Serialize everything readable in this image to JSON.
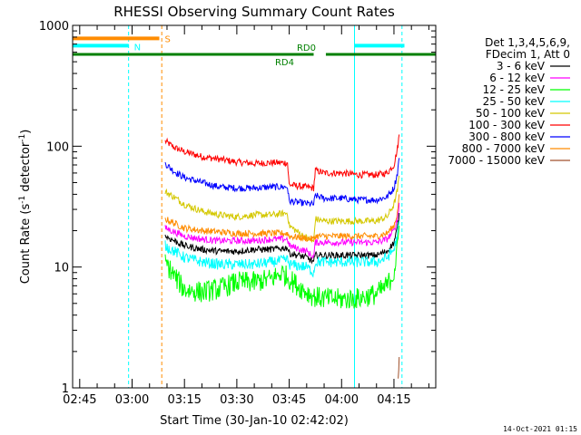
{
  "chart_data": {
    "type": "line",
    "title": "RHESSI Observing Summary Count Rates",
    "xlabel": "Start Time (30-Jan-10 02:42:02)",
    "ylabel_main": "Count Rate (s",
    "ylabel_sup1": "-1",
    "ylabel_mid": " detector",
    "ylabel_sup2": "-1",
    "ylabel_end": ")",
    "y_scale": "log",
    "ylim": [
      1,
      1000
    ],
    "xlim_minutes": [
      -2.03,
      101.97
    ],
    "x_ticks": [
      {
        "label": "02:45",
        "minutes": 0
      },
      {
        "label": "03:00",
        "minutes": 15
      },
      {
        "label": "03:15",
        "minutes": 30
      },
      {
        "label": "03:30",
        "minutes": 45
      },
      {
        "label": "03:45",
        "minutes": 60
      },
      {
        "label": "04:00",
        "minutes": 75
      },
      {
        "label": "04:15",
        "minutes": 90
      }
    ],
    "y_ticks": [
      {
        "label": "1",
        "value": 1
      },
      {
        "label": "10",
        "value": 10
      },
      {
        "label": "100",
        "value": 100
      },
      {
        "label": "1000",
        "value": 1000
      }
    ],
    "legend": {
      "position": "right",
      "header": [
        "Det 1,3,4,5,6,9,",
        "FDecim 1, Att 0"
      ],
      "entries": [
        {
          "label": "3 - 6 keV",
          "color": "#000000"
        },
        {
          "label": "6 - 12 keV",
          "color": "#ff00ff"
        },
        {
          "label": "12 - 25 keV",
          "color": "#00ff00"
        },
        {
          "label": "25 - 50 keV",
          "color": "#00ffff"
        },
        {
          "label": "50 - 100 keV",
          "color": "#d4c800"
        },
        {
          "label": "100 - 300 keV",
          "color": "#ff0000"
        },
        {
          "label": "300 - 800 keV",
          "color": "#0000ff"
        },
        {
          "label": "800 - 7000 keV",
          "color": "#ff8c00"
        },
        {
          "label": "7000 - 15000 keV",
          "color": "#a0522d"
        }
      ]
    },
    "series": [
      {
        "band": "100 - 300 keV",
        "color": "#ff0000",
        "points": [
          [
            24.5,
            110
          ],
          [
            27,
            98
          ],
          [
            30,
            90
          ],
          [
            35,
            82
          ],
          [
            40,
            78
          ],
          [
            45,
            74
          ],
          [
            50,
            72
          ],
          [
            55,
            73
          ],
          [
            59.5,
            73
          ],
          [
            60,
            48
          ],
          [
            67,
            45
          ],
          [
            67.5,
            63
          ],
          [
            70,
            60
          ],
          [
            75,
            60
          ],
          [
            80,
            58
          ],
          [
            85,
            58
          ],
          [
            88,
            60
          ],
          [
            90,
            70
          ],
          [
            91,
            95
          ],
          [
            91.5,
            125
          ]
        ]
      },
      {
        "band": "300 - 800 keV",
        "color": "#0000ff",
        "points": [
          [
            24.5,
            72
          ],
          [
            27,
            62
          ],
          [
            30,
            55
          ],
          [
            35,
            50
          ],
          [
            40,
            46
          ],
          [
            45,
            45
          ],
          [
            50,
            45
          ],
          [
            55,
            46
          ],
          [
            59.5,
            46
          ],
          [
            60,
            35
          ],
          [
            67,
            33
          ],
          [
            67.5,
            39
          ],
          [
            70,
            37
          ],
          [
            75,
            37
          ],
          [
            80,
            36
          ],
          [
            85,
            36
          ],
          [
            88,
            38
          ],
          [
            90,
            45
          ],
          [
            91,
            60
          ],
          [
            91.5,
            80
          ]
        ]
      },
      {
        "band": "50 - 100 keV",
        "color": "#d4c800",
        "points": [
          [
            24.5,
            42
          ],
          [
            27,
            38
          ],
          [
            30,
            33
          ],
          [
            35,
            29
          ],
          [
            40,
            27
          ],
          [
            45,
            26
          ],
          [
            50,
            27
          ],
          [
            55,
            27
          ],
          [
            59.5,
            28
          ],
          [
            60,
            22
          ],
          [
            63,
            19
          ],
          [
            67,
            16
          ],
          [
            67.5,
            25
          ],
          [
            70,
            24
          ],
          [
            75,
            24
          ],
          [
            80,
            24
          ],
          [
            85,
            24
          ],
          [
            88,
            26
          ],
          [
            90,
            33
          ],
          [
            91,
            43
          ],
          [
            91.5,
            57
          ]
        ]
      },
      {
        "band": "800 - 7000 keV",
        "color": "#ff8c00",
        "points": [
          [
            24.5,
            25
          ],
          [
            30,
            21
          ],
          [
            35,
            20
          ],
          [
            40,
            19.5
          ],
          [
            45,
            19
          ],
          [
            50,
            19
          ],
          [
            55,
            19
          ],
          [
            59.5,
            19
          ],
          [
            60,
            18
          ],
          [
            67,
            17
          ],
          [
            67.5,
            18
          ],
          [
            75,
            18
          ],
          [
            80,
            18
          ],
          [
            85,
            18
          ],
          [
            88,
            19
          ],
          [
            90,
            22
          ],
          [
            91,
            28
          ],
          [
            91.5,
            40
          ]
        ]
      },
      {
        "band": "6 - 12 keV",
        "color": "#ff00ff",
        "points": [
          [
            24.5,
            21
          ],
          [
            30,
            18
          ],
          [
            35,
            17
          ],
          [
            40,
            16.5
          ],
          [
            45,
            16.5
          ],
          [
            50,
            16.5
          ],
          [
            55,
            17
          ],
          [
            59.5,
            17
          ],
          [
            60,
            15
          ],
          [
            65,
            13.5
          ],
          [
            67,
            12
          ],
          [
            67.5,
            16
          ],
          [
            75,
            16
          ],
          [
            80,
            16
          ],
          [
            85,
            16
          ],
          [
            88,
            17
          ],
          [
            90,
            20
          ],
          [
            91,
            25
          ],
          [
            91.5,
            34
          ]
        ]
      },
      {
        "band": "3 - 6 keV",
        "color": "#000000",
        "points": [
          [
            24.5,
            18
          ],
          [
            30,
            15
          ],
          [
            35,
            14
          ],
          [
            40,
            13.5
          ],
          [
            45,
            13.5
          ],
          [
            50,
            14
          ],
          [
            55,
            14
          ],
          [
            59.5,
            14.5
          ],
          [
            60,
            13
          ],
          [
            65,
            12
          ],
          [
            67,
            11
          ],
          [
            67.5,
            12.5
          ],
          [
            75,
            12.5
          ],
          [
            80,
            12.5
          ],
          [
            85,
            12.5
          ],
          [
            88,
            13.5
          ],
          [
            90,
            16
          ],
          [
            91,
            21
          ],
          [
            91.5,
            28
          ]
        ]
      },
      {
        "band": "25 - 50 keV",
        "color": "#00ffff",
        "points": [
          [
            24.5,
            15
          ],
          [
            30,
            12
          ],
          [
            35,
            11
          ],
          [
            40,
            10.5
          ],
          [
            45,
            10.5
          ],
          [
            50,
            10.5
          ],
          [
            55,
            11
          ],
          [
            59.5,
            11.5
          ],
          [
            60,
            10.5
          ],
          [
            65,
            10
          ],
          [
            67,
            9
          ],
          [
            67.5,
            11
          ],
          [
            75,
            11
          ],
          [
            80,
            11
          ],
          [
            85,
            11
          ],
          [
            88,
            12
          ],
          [
            90,
            14
          ],
          [
            91,
            18
          ],
          [
            91.5,
            24
          ]
        ]
      },
      {
        "band": "12 - 25 keV",
        "color": "#00ff00",
        "points": [
          [
            24.5,
            11
          ],
          [
            27,
            8.5
          ],
          [
            30,
            6.5
          ],
          [
            35,
            6.2
          ],
          [
            40,
            6.6
          ],
          [
            45,
            7.5
          ],
          [
            50,
            7.5
          ],
          [
            55,
            8
          ],
          [
            58,
            9
          ],
          [
            60,
            8
          ],
          [
            63,
            6.8
          ],
          [
            67,
            5.7
          ],
          [
            70,
            5.5
          ],
          [
            75,
            5.4
          ],
          [
            80,
            5.5
          ],
          [
            85,
            6
          ],
          [
            88,
            7
          ],
          [
            90,
            9
          ],
          [
            91,
            14
          ],
          [
            91.5,
            22
          ]
        ]
      },
      {
        "band": "7000 - 15000 keV",
        "color": "#a0522d",
        "points": [
          [
            91.2,
            1.2
          ],
          [
            91.5,
            1.8
          ]
        ]
      }
    ],
    "attenuator_bars": [
      {
        "label": "S",
        "color": "#ff8c00",
        "start": -2.03,
        "end": 22.8,
        "value": 780
      },
      {
        "label": "N",
        "color": "#00ffff",
        "start": -2.03,
        "end": 14.0,
        "value": 680
      },
      {
        "label": "N",
        "color": "#00ffff",
        "start": 78.7,
        "end": 93,
        "value": 680
      }
    ],
    "state_bars": [
      {
        "label": "RD0",
        "color": "#008000",
        "start": -2.03,
        "end": 67.0,
        "value": 575,
        "label_pos": "above"
      },
      {
        "label": "RD4",
        "color": "#008000",
        "start": 70.5,
        "end": 101.97,
        "value": 575,
        "label_pos": "below"
      }
    ],
    "vertical_markers": [
      {
        "minutes": 14.0,
        "color": "#00ffff",
        "style": "dashed"
      },
      {
        "minutes": 23.5,
        "color": "#ff8c00",
        "style": "dashed"
      },
      {
        "minutes": 78.7,
        "color": "#00ffff",
        "style": "solid"
      },
      {
        "minutes": 92.3,
        "color": "#00ffff",
        "style": "dashed"
      }
    ],
    "footer_date": "14-Oct-2021 01:15"
  }
}
